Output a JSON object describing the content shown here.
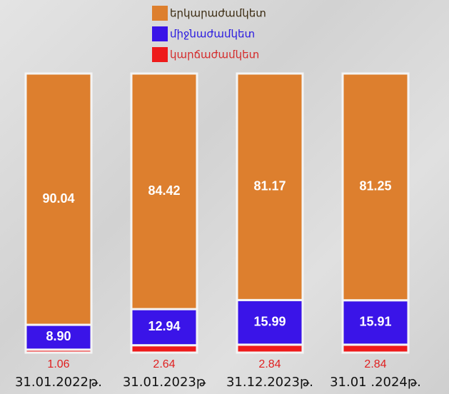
{
  "chart_data": {
    "type": "stacked_bar",
    "categories": [
      "31.01.2022թ.",
      "31.01.2023թ",
      "31.12.2023թ.",
      "31.01 .2024թ."
    ],
    "series": [
      {
        "name": "կարճաժամկետ",
        "color": "#ee1b1b",
        "values": [
          1.06,
          2.64,
          2.84,
          2.84
        ],
        "value_labels": [
          "1.06",
          "2.64",
          "2.84",
          "2.84"
        ]
      },
      {
        "name": "միջնաժամկետ",
        "color": "#3a14e8",
        "values": [
          8.9,
          12.94,
          15.99,
          15.91
        ],
        "value_labels": [
          "8.90",
          "12.94",
          "15.99",
          "15.91"
        ]
      },
      {
        "name": "երկարաժամկետ",
        "color": "#dd7f2e",
        "values": [
          90.04,
          84.42,
          81.17,
          81.25
        ],
        "value_labels": [
          "90.04",
          "84.42",
          "81.17",
          "81.25"
        ]
      }
    ]
  }
}
